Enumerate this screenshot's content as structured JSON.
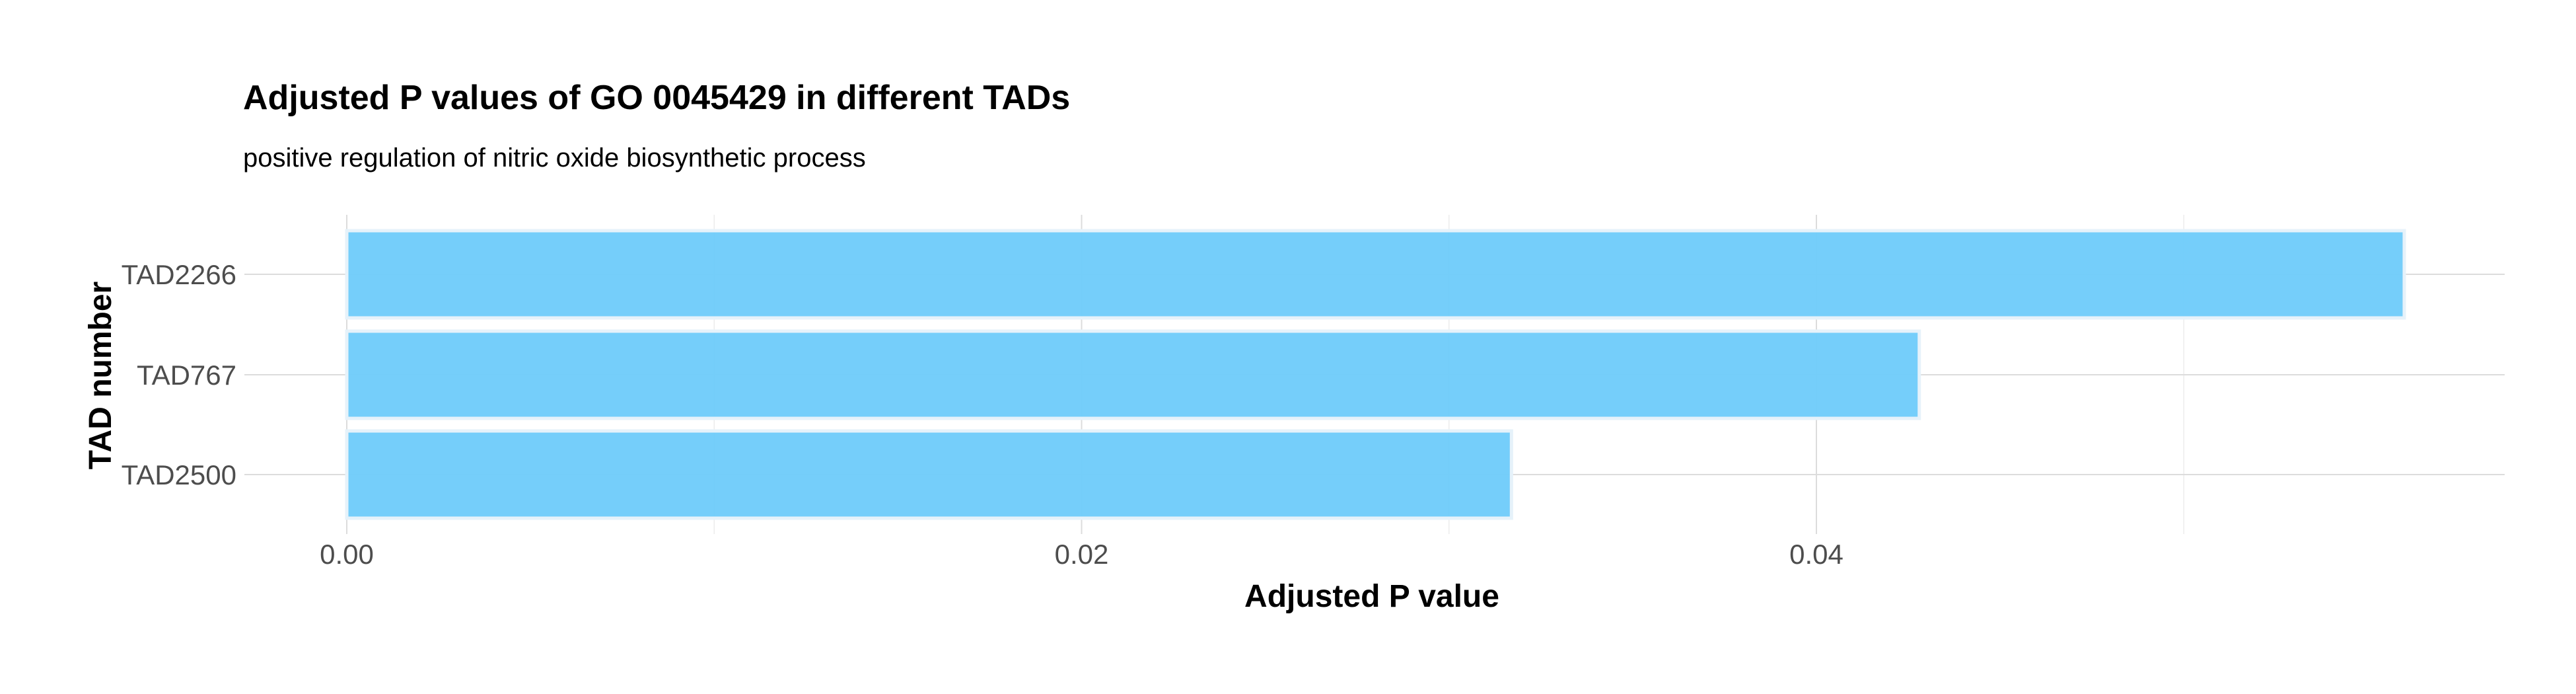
{
  "chart_data": {
    "type": "bar",
    "orientation": "horizontal",
    "title": "Adjusted P values of GO 0045429 in different TADs",
    "subtitle": "positive regulation of nitric oxide biosynthetic process",
    "xlabel": "Adjusted P value",
    "ylabel": "TAD number",
    "categories": [
      "TAD2266",
      "TAD767",
      "TAD2500"
    ],
    "values": [
      0.056,
      0.0428,
      0.0317
    ],
    "xlim": [
      0,
      0.0587
    ],
    "xticks": [
      0.0,
      0.02,
      0.04
    ],
    "xtick_labels": [
      "0.00",
      "0.02",
      "0.04"
    ],
    "grid": true,
    "bar_color": "#6ecbfa",
    "bar_edge_color": "#e6f2fa"
  }
}
